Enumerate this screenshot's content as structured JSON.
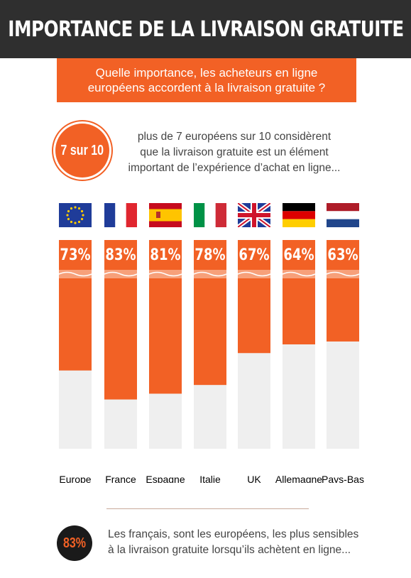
{
  "header": {
    "title": "IMPORTANCE DE LA LIVRAISON GRATUITE"
  },
  "question": {
    "text": "Quelle importance, les acheteurs en ligne européens accordent à la livraison gratuite ?"
  },
  "intro": {
    "badge": "7 sur 10",
    "text": "plus de 7 européens sur 10 considèrent que la livraison gratuite est un élément important de l’expérience d’achat en ligne..."
  },
  "colors": {
    "accent": "#f26125",
    "bar_bg": "#efefef",
    "dark": "#2f2f2f"
  },
  "chart_data": {
    "type": "bar",
    "categories": [
      "Europe",
      "France",
      "Espagne",
      "Italie",
      "UK",
      "Allemagne",
      "Pays-Bas"
    ],
    "values": [
      73,
      83,
      81,
      78,
      67,
      64,
      63
    ],
    "value_labels": [
      "73%",
      "83%",
      "81%",
      "78%",
      "67%",
      "64%",
      "63%"
    ],
    "flags": [
      "eu-flag-icon",
      "france-flag-icon",
      "spain-flag-icon",
      "italy-flag-icon",
      "uk-flag-icon",
      "germany-flag-icon",
      "netherlands-flag-icon"
    ],
    "ylim": [
      0,
      100
    ]
  },
  "footer": {
    "badge": "83%",
    "text": "Les français, sont les européens, les plus sensibles à la livraison gratuite lorsqu’ils achètent en ligne..."
  }
}
